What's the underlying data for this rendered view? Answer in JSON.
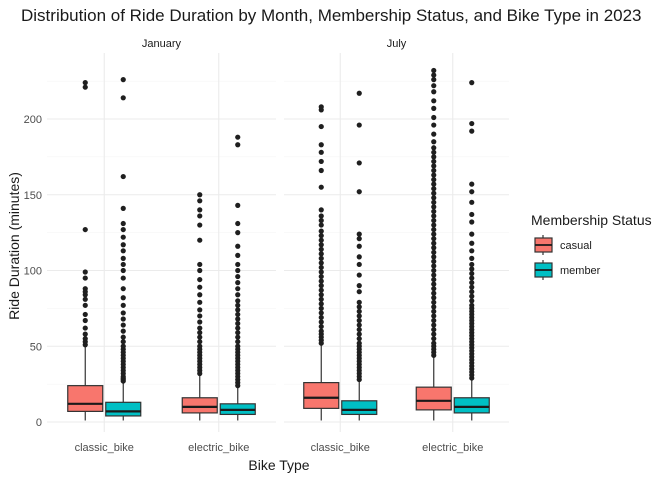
{
  "chart_data": {
    "type": "boxplot",
    "title": "Distribution of Ride Duration by Month, Membership Status, and Bike Type in 2023",
    "xlabel": "Bike Type",
    "ylabel": "Ride Duration (minutes)",
    "ylim": [
      0,
      232
    ],
    "yticks": [
      0,
      50,
      100,
      150,
      200
    ],
    "categories": [
      "classic_bike",
      "electric_bike"
    ],
    "grid": true,
    "legend": {
      "title": "Membership Status",
      "position": "right",
      "entries": [
        {
          "label": "casual",
          "color": "#F8766D"
        },
        {
          "label": "member",
          "color": "#00BFC4"
        }
      ]
    },
    "facets": [
      {
        "name": "January",
        "boxes": [
          {
            "category": "classic_bike",
            "series": "casual",
            "q1": 7,
            "median": 12,
            "q3": 24,
            "whisker_low": 1,
            "whisker_high": 50,
            "outliers": [
              51,
              53,
              55,
              58,
              62,
              67,
              71,
              77,
              81,
              84,
              86,
              88,
              95,
              99,
              127,
              221,
              224
            ]
          },
          {
            "category": "classic_bike",
            "series": "member",
            "q1": 4,
            "median": 7,
            "q3": 13,
            "whisker_low": 1,
            "whisker_high": 26,
            "outliers": [
              27,
              28,
              29,
              30,
              32,
              34,
              36,
              38,
              40,
              42,
              44,
              46,
              48,
              50,
              53,
              56,
              60,
              64,
              68,
              72,
              77,
              82,
              88,
              95,
              100,
              104,
              108,
              113,
              117,
              122,
              127,
              131,
              141,
              162,
              214,
              226
            ]
          },
          {
            "category": "electric_bike",
            "series": "casual",
            "q1": 6,
            "median": 10,
            "q3": 16,
            "whisker_low": 1,
            "whisker_high": 31,
            "outliers": [
              32,
              34,
              36,
              38,
              40,
              42,
              44,
              46,
              48,
              50,
              53,
              56,
              59,
              62,
              66,
              70,
              74,
              79,
              84,
              89,
              94,
              100,
              104,
              120,
              130,
              136,
              140,
              146,
              150
            ]
          },
          {
            "category": "electric_bike",
            "series": "member",
            "q1": 5,
            "median": 8,
            "q3": 12,
            "whisker_low": 1,
            "whisker_high": 23,
            "outliers": [
              24,
              26,
              28,
              30,
              32,
              34,
              36,
              38,
              40,
              42,
              44,
              46,
              48,
              50,
              53,
              56,
              59,
              62,
              65,
              68,
              71,
              74,
              77,
              80,
              84,
              88,
              92,
              96,
              100,
              104,
              110,
              116,
              125,
              131,
              143,
              183,
              188
            ]
          }
        ]
      },
      {
        "name": "July",
        "boxes": [
          {
            "category": "classic_bike",
            "series": "casual",
            "q1": 9,
            "median": 16,
            "q3": 26,
            "whisker_low": 1,
            "whisker_high": 51,
            "outliers": [
              52,
              54,
              56,
              58,
              60,
              63,
              66,
              69,
              72,
              75,
              78,
              81,
              84,
              87,
              90,
              93,
              96,
              99,
              102,
              105,
              108,
              111,
              114,
              117,
              120,
              123,
              126,
              130,
              133,
              136,
              140,
              155,
              166,
              172,
              178,
              183,
              195,
              206,
              208
            ]
          },
          {
            "category": "classic_bike",
            "series": "member",
            "q1": 5,
            "median": 8,
            "q3": 14,
            "whisker_low": 1,
            "whisker_high": 27,
            "outliers": [
              28,
              30,
              32,
              34,
              36,
              38,
              40,
              42,
              44,
              46,
              48,
              50,
              52,
              55,
              58,
              61,
              64,
              67,
              70,
              73,
              76,
              79,
              86,
              90,
              97,
              104,
              109,
              116,
              121,
              124,
              152,
              171,
              196,
              217
            ]
          },
          {
            "category": "electric_bike",
            "series": "casual",
            "q1": 8,
            "median": 14,
            "q3": 23,
            "whisker_low": 1,
            "whisker_high": 43,
            "outliers": [
              44,
              46,
              48,
              50,
              52,
              55,
              58,
              61,
              64,
              67,
              70,
              73,
              76,
              79,
              82,
              85,
              88,
              91,
              94,
              97,
              100,
              103,
              106,
              109,
              112,
              115,
              118,
              121,
              124,
              127,
              130,
              133,
              136,
              139,
              142,
              145,
              148,
              151,
              154,
              157,
              160,
              163,
              166,
              169,
              172,
              175,
              178,
              181,
              185,
              190,
              196,
              201,
              207,
              212,
              218,
              222,
              226,
              229,
              232
            ]
          },
          {
            "category": "electric_bike",
            "series": "member",
            "q1": 6,
            "median": 10,
            "q3": 16,
            "whisker_low": 1,
            "whisker_high": 28,
            "outliers": [
              29,
              31,
              33,
              35,
              37,
              39,
              41,
              43,
              45,
              47,
              49,
              51,
              53,
              55,
              57,
              59,
              61,
              63,
              65,
              67,
              69,
              71,
              73,
              75,
              77,
              80,
              83,
              86,
              89,
              92,
              95,
              98,
              101,
              104,
              108,
              113,
              118,
              124,
              132,
              137,
              145,
              152,
              157,
              192,
              197,
              224
            ]
          }
        ]
      }
    ]
  }
}
